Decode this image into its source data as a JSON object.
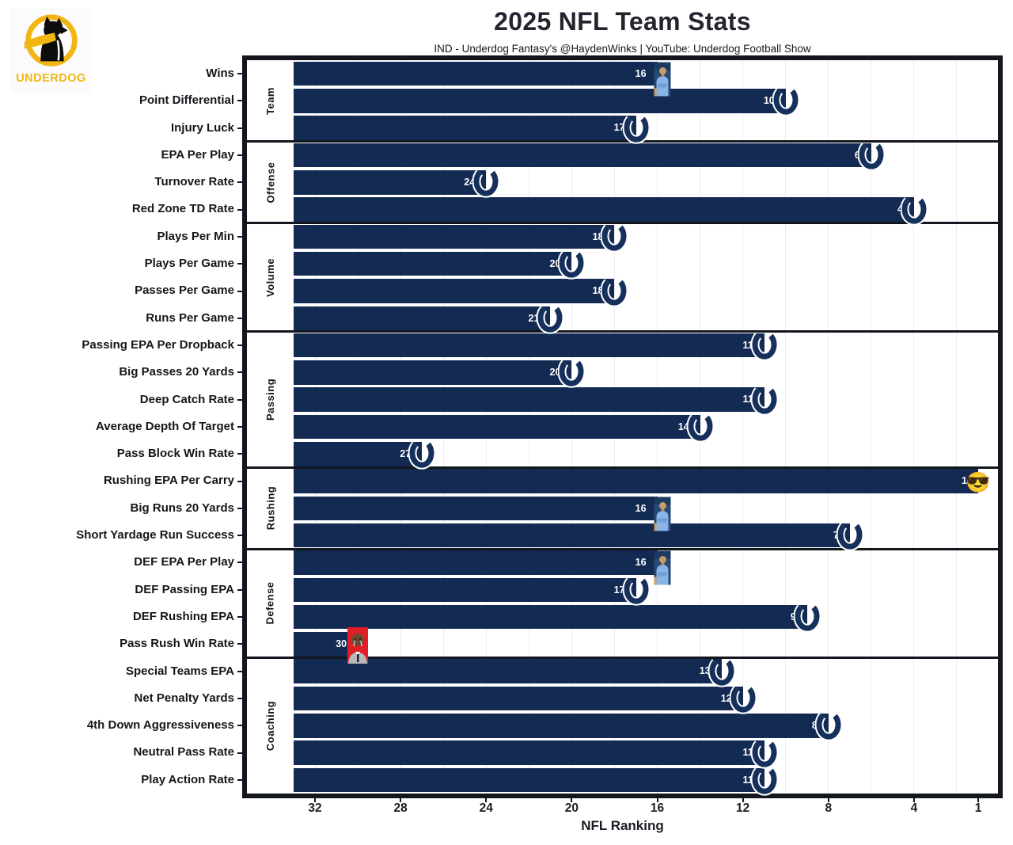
{
  "header": {
    "logo": {
      "brand": "UNDERDOG"
    },
    "title": "2025 NFL Team Stats",
    "subtitle": "IND - Underdog Fantasy's @HaydenWinks | YouTube: Underdog Football Show"
  },
  "chart_data": {
    "type": "bar",
    "orientation": "horizontal",
    "title": "2025 NFL Team Stats",
    "xlabel": "NFL Ranking",
    "x_ticks": [
      32,
      28,
      24,
      20,
      16,
      12,
      8,
      4,
      1
    ],
    "x_domain_left_to_right": [
      33,
      1
    ],
    "axis_note": "ranking axis reversed, 1 (best) on the right",
    "grid": "light vertical gridlines every 2 ranks",
    "colors": {
      "bar": "#132a52",
      "horseshoe": "#16305c",
      "frame": "#14161e",
      "brand_yellow": "#F2B614",
      "meme_red": "#e01e26"
    },
    "icons": {
      "horseshoe": "Indianapolis Colts horseshoe logo",
      "coach-photo": "small photo of man in light-blue shirt, arms crossed",
      "crying-meme": "crying-face meme photo on red background",
      "sunglasses-emoji": "😎"
    },
    "sunglasses_char": "😎",
    "groups": [
      {
        "name": "Team",
        "rows": [
          {
            "label": "Wins",
            "rank": 16,
            "icon": "coach-photo"
          },
          {
            "label": "Point Differential",
            "rank": 10,
            "icon": "horseshoe"
          },
          {
            "label": "Injury Luck",
            "rank": 17,
            "icon": "horseshoe"
          }
        ]
      },
      {
        "name": "Offense",
        "rows": [
          {
            "label": "EPA Per Play",
            "rank": 6,
            "icon": "horseshoe"
          },
          {
            "label": "Turnover Rate",
            "rank": 24,
            "icon": "horseshoe"
          },
          {
            "label": "Red Zone TD Rate",
            "rank": 4,
            "icon": "horseshoe"
          }
        ]
      },
      {
        "name": "Volume",
        "rows": [
          {
            "label": "Plays Per Min",
            "rank": 18,
            "icon": "horseshoe"
          },
          {
            "label": "Plays Per Game",
            "rank": 20,
            "icon": "horseshoe"
          },
          {
            "label": "Passes Per Game",
            "rank": 18,
            "icon": "horseshoe"
          },
          {
            "label": "Runs Per Game",
            "rank": 21,
            "icon": "horseshoe"
          }
        ]
      },
      {
        "name": "Passing",
        "rows": [
          {
            "label": "Passing EPA Per Dropback",
            "rank": 11,
            "icon": "horseshoe"
          },
          {
            "label": "Big Passes 20 Yards",
            "rank": 20,
            "icon": "horseshoe"
          },
          {
            "label": "Deep Catch Rate",
            "rank": 11,
            "icon": "horseshoe"
          },
          {
            "label": "Average Depth Of Target",
            "rank": 14,
            "icon": "horseshoe"
          },
          {
            "label": "Pass Block Win Rate",
            "rank": 27,
            "icon": "horseshoe"
          }
        ]
      },
      {
        "name": "Rushing",
        "rows": [
          {
            "label": "Rushing EPA Per Carry",
            "rank": 1,
            "icon": "sunglasses-emoji"
          },
          {
            "label": "Big Runs 20 Yards",
            "rank": 16,
            "icon": "coach-photo"
          },
          {
            "label": "Short Yardage Run Success",
            "rank": 7,
            "icon": "horseshoe"
          }
        ]
      },
      {
        "name": "Defense",
        "rows": [
          {
            "label": "DEF EPA Per Play",
            "rank": 16,
            "icon": "coach-photo"
          },
          {
            "label": "DEF Passing EPA",
            "rank": 17,
            "icon": "horseshoe"
          },
          {
            "label": "DEF Rushing EPA",
            "rank": 9,
            "icon": "horseshoe"
          },
          {
            "label": "Pass Rush Win Rate",
            "rank": 30,
            "icon": "crying-meme"
          }
        ]
      },
      {
        "name": "Coaching",
        "rows": [
          {
            "label": "Special Teams EPA",
            "rank": 13,
            "icon": "horseshoe"
          },
          {
            "label": "Net Penalty Yards",
            "rank": 12,
            "icon": "horseshoe"
          },
          {
            "label": "4th Down Aggressiveness",
            "rank": 8,
            "icon": "horseshoe"
          },
          {
            "label": "Neutral Pass Rate",
            "rank": 11,
            "icon": "horseshoe"
          },
          {
            "label": "Play Action Rate",
            "rank": 11,
            "icon": "horseshoe"
          }
        ]
      }
    ]
  }
}
